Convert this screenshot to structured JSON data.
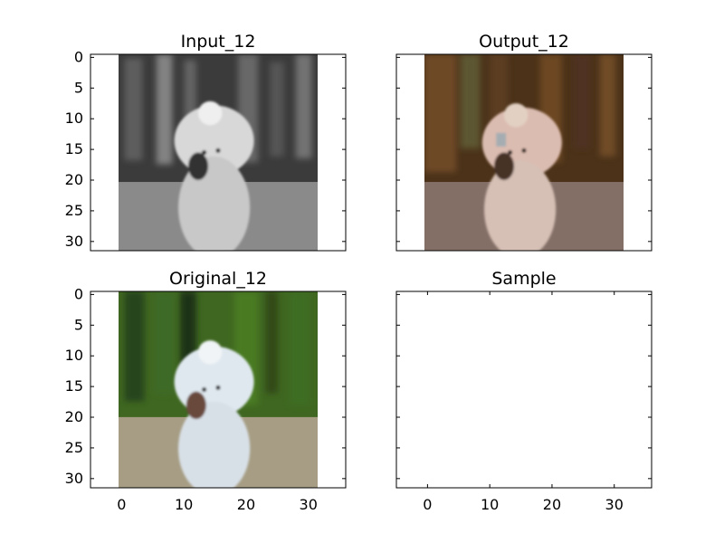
{
  "chart_data": [
    {
      "type": "image",
      "title": "Input_12",
      "image_extent": [
        -0.5,
        31.5,
        31.5,
        -0.5
      ],
      "xlim": [
        -5,
        36
      ],
      "ylim": [
        31.5,
        -0.5
      ],
      "xticks": [
        0,
        10,
        20,
        30
      ],
      "yticks": [
        0,
        5,
        10,
        15,
        20,
        25,
        30
      ],
      "show_x_tick_labels": false,
      "show_y_tick_labels": true,
      "image_content": "grayscale white dog"
    },
    {
      "type": "image",
      "title": "Output_12",
      "image_extent": [
        -0.5,
        31.5,
        31.5,
        -0.5
      ],
      "xlim": [
        -5,
        36
      ],
      "ylim": [
        31.5,
        -0.5
      ],
      "xticks": [
        0,
        10,
        20,
        30
      ],
      "yticks": [
        0,
        5,
        10,
        15,
        20,
        25,
        30
      ],
      "show_x_tick_labels": false,
      "show_y_tick_labels": false,
      "image_content": "colorized brownish dog"
    },
    {
      "type": "image",
      "title": "Original_12",
      "image_extent": [
        -0.5,
        31.5,
        31.5,
        -0.5
      ],
      "xlim": [
        -5,
        36
      ],
      "ylim": [
        31.5,
        -0.5
      ],
      "xticks": [
        0,
        10,
        20,
        30
      ],
      "yticks": [
        0,
        5,
        10,
        15,
        20,
        25,
        30
      ],
      "show_x_tick_labels": true,
      "show_y_tick_labels": true,
      "image_content": "original color white dog with green background"
    },
    {
      "type": "image",
      "title": "Sample",
      "image_extent": null,
      "xlim": [
        -5,
        36
      ],
      "ylim": [
        31.5,
        -0.5
      ],
      "xticks": [
        0,
        10,
        20,
        30
      ],
      "yticks": [
        0,
        5,
        10,
        15,
        20,
        25,
        30
      ],
      "show_x_tick_labels": true,
      "show_y_tick_labels": false,
      "image_content": "blank"
    }
  ],
  "colors": {
    "background": "#ffffff",
    "frame": "#000000",
    "input_background_dark": "#3b3b3b",
    "input_ground": "#8e8e8e",
    "input_dog": "#d8d8d8",
    "output_background": "#4b3219",
    "output_green_tint": "#5d5630",
    "output_ground": "#86716a",
    "output_dog": "#dbbcb0",
    "original_green": "#3f6721",
    "original_dark": "#243415",
    "original_ground": "#a69d84",
    "original_dog": "#dfe8ef"
  }
}
